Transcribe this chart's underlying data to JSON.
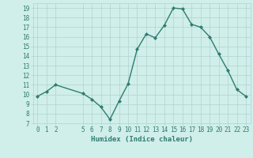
{
  "x": [
    0,
    1,
    2,
    5,
    6,
    7,
    8,
    9,
    10,
    11,
    12,
    13,
    14,
    15,
    16,
    17,
    18,
    19,
    20,
    21,
    22,
    23
  ],
  "y": [
    9.8,
    10.3,
    11.0,
    10.1,
    9.5,
    8.7,
    7.4,
    9.3,
    11.1,
    14.7,
    16.3,
    15.9,
    17.2,
    19.0,
    18.9,
    17.3,
    17.0,
    16.0,
    14.2,
    12.5,
    10.5,
    9.8
  ],
  "line_color": "#2e7d70",
  "bg_color": "#d0eeea",
  "grid_color": "#b0d4cf",
  "xlabel": "Humidex (Indice chaleur)",
  "xlim": [
    -0.5,
    23.5
  ],
  "ylim": [
    7,
    19.5
  ],
  "yticks": [
    7,
    8,
    9,
    10,
    11,
    12,
    13,
    14,
    15,
    16,
    17,
    18,
    19
  ],
  "xticks": [
    0,
    1,
    2,
    5,
    6,
    7,
    8,
    9,
    10,
    11,
    12,
    13,
    14,
    15,
    16,
    17,
    18,
    19,
    20,
    21,
    22,
    23
  ],
  "xtick_labels": [
    "0",
    "1",
    "2",
    "5",
    "6",
    "7",
    "8",
    "9",
    "10",
    "11",
    "12",
    "13",
    "14",
    "15",
    "16",
    "17",
    "18",
    "19",
    "20",
    "21",
    "22",
    "23"
  ],
  "marker": "D",
  "marker_size": 2.0,
  "line_width": 1.0,
  "tick_fontsize": 5.5,
  "xlabel_fontsize": 6.5
}
